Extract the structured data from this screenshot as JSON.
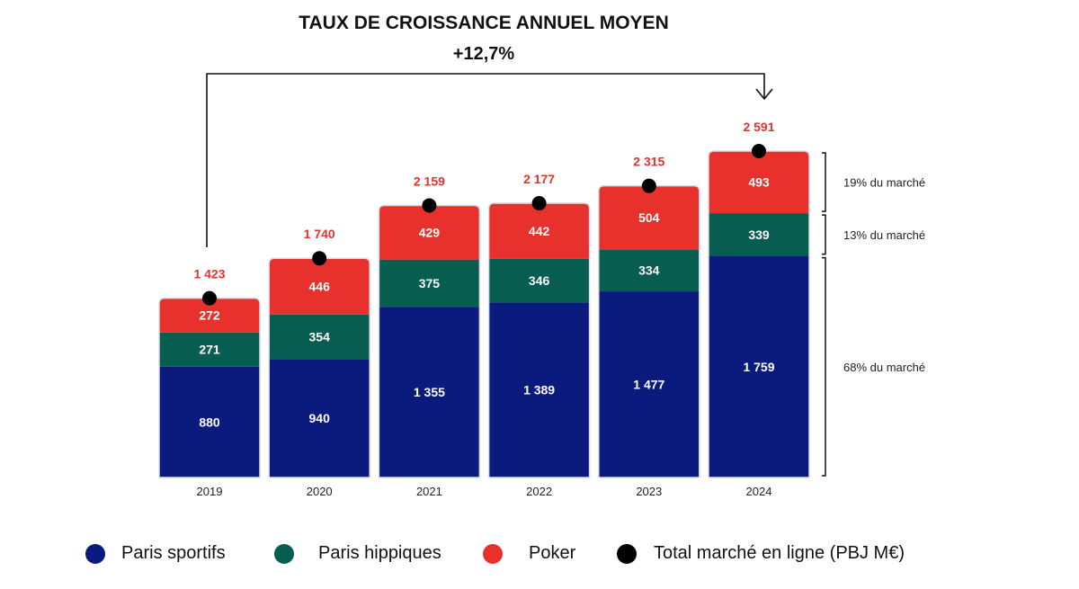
{
  "chart_data": {
    "type": "bar",
    "stacked": true,
    "title": "TAUX DE CROISSANCE ANNUEL MOYEN",
    "cagr_label": "+12,7%",
    "categories": [
      "2019",
      "2020",
      "2021",
      "2022",
      "2023",
      "2024"
    ],
    "series": [
      {
        "name": "Paris sportifs",
        "color": "#0b1a7d",
        "values": [
          880,
          940,
          1355,
          1389,
          1477,
          1759
        ],
        "labels": [
          "880",
          "940",
          "1 355",
          "1 389",
          "1 477",
          "1 759"
        ]
      },
      {
        "name": "Paris hippiques",
        "color": "#075e50",
        "values": [
          271,
          354,
          375,
          346,
          334,
          339
        ],
        "labels": [
          "271",
          "354",
          "375",
          "346",
          "334",
          "339"
        ]
      },
      {
        "name": "Poker",
        "color": "#e8312d",
        "values": [
          272,
          446,
          429,
          442,
          504,
          493
        ],
        "labels": [
          "272",
          "446",
          "429",
          "442",
          "504",
          "493"
        ]
      }
    ],
    "totals": {
      "name": "Total marché en ligne (PBJ M€)",
      "color": "#000000",
      "values": [
        1423,
        1740,
        2159,
        2177,
        2315,
        2591
      ],
      "labels": [
        "1 423",
        "1 740",
        "2 159",
        "2 177",
        "2 315",
        "2 591"
      ]
    },
    "market_shares": [
      "19% du marché",
      "13% du marché",
      "68% du marché"
    ],
    "ylim": [
      0,
      2591
    ],
    "grid": false,
    "legend_position": "bottom"
  }
}
